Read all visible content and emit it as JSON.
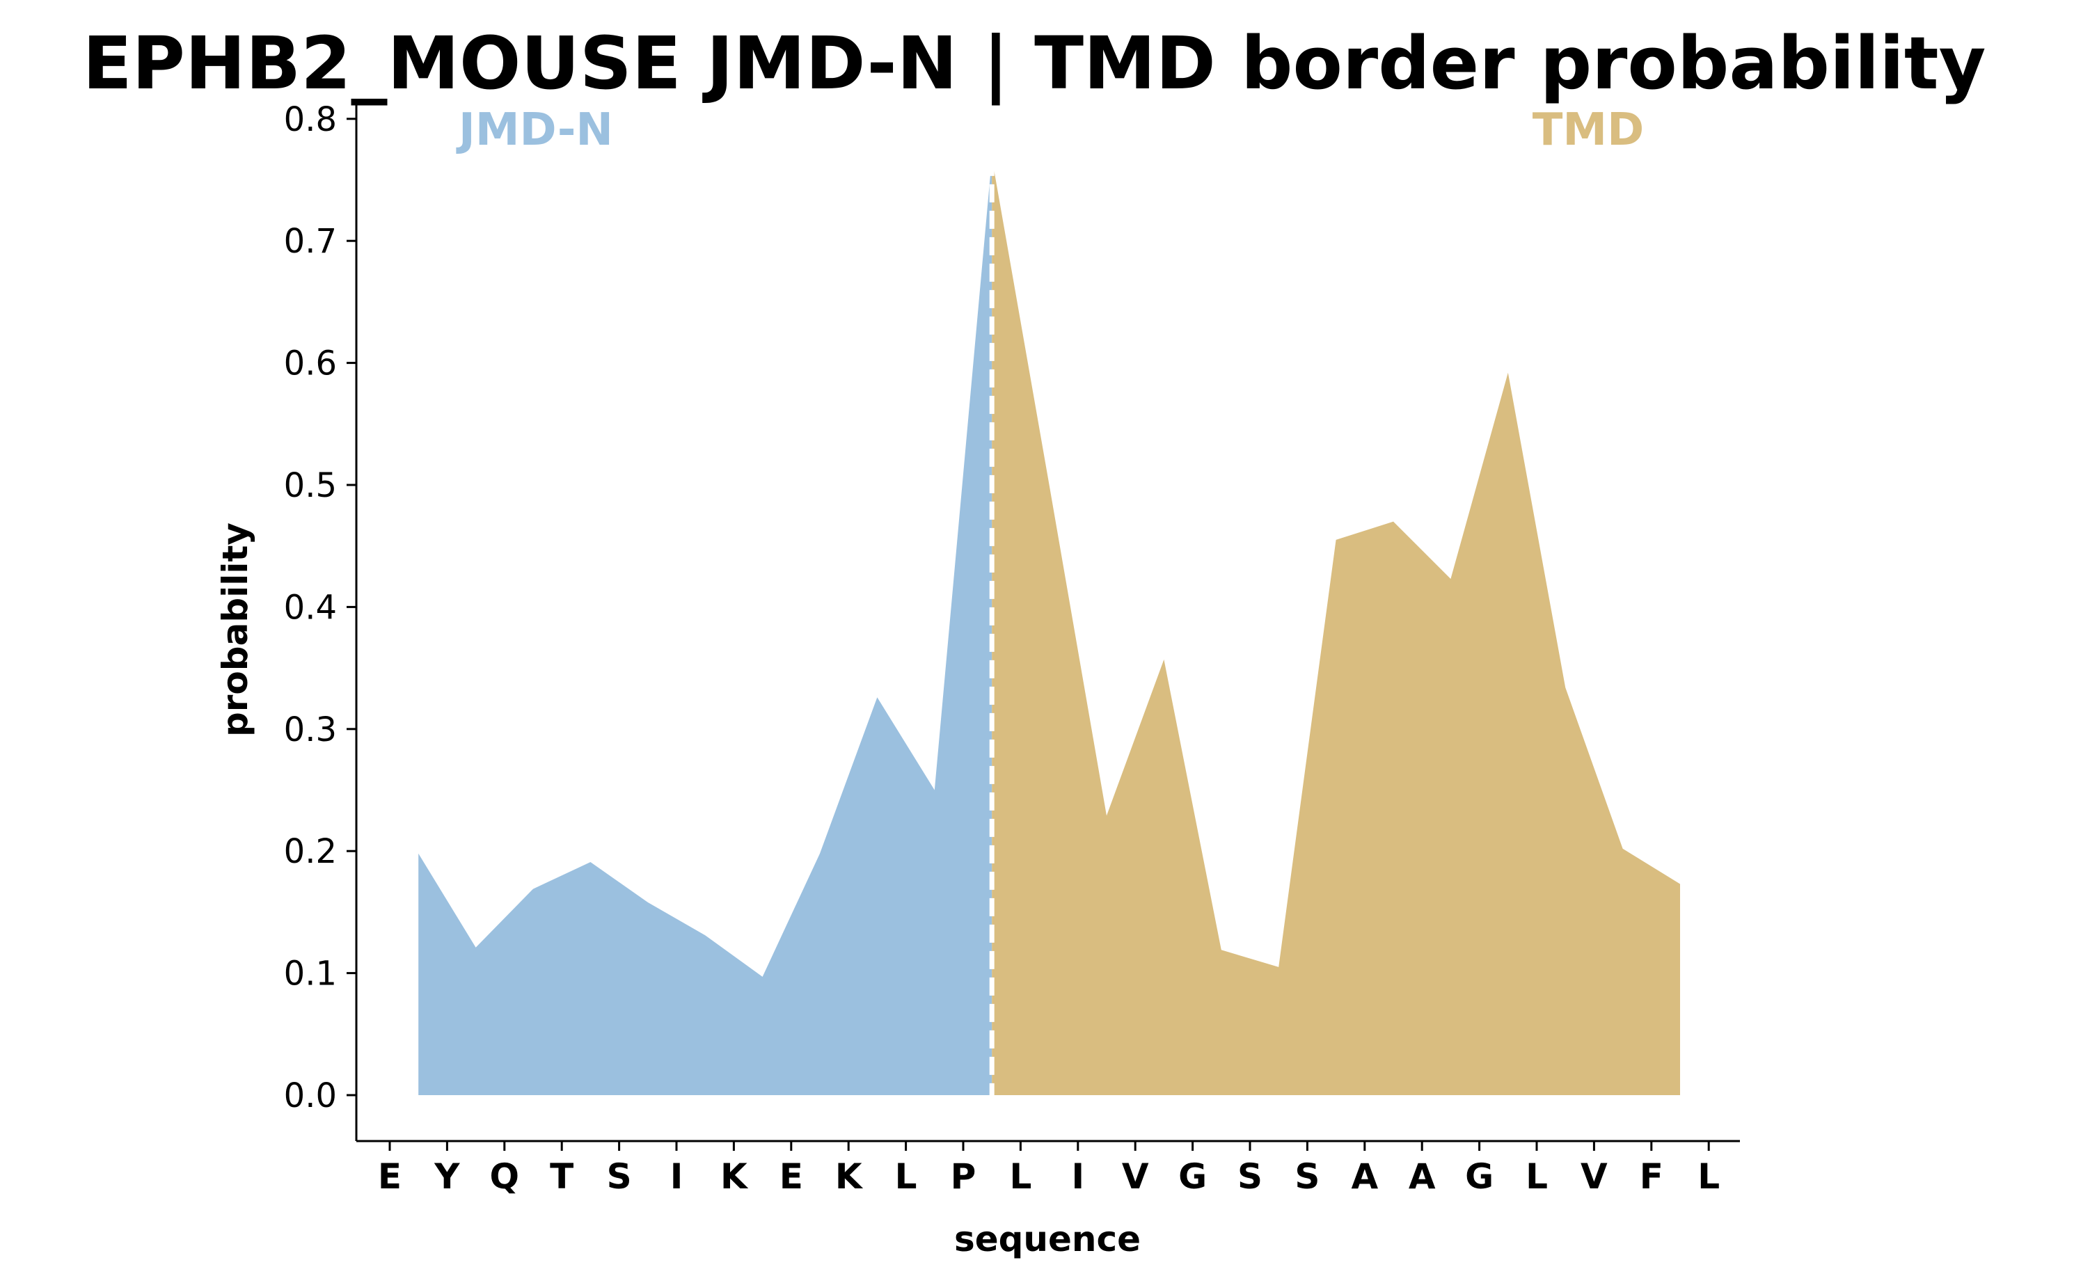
{
  "chart_data": {
    "type": "area",
    "title": "EPHB2_MOUSE JMD-N | TMD border probability",
    "xlabel": "sequence",
    "ylabel": "probability",
    "ylim": [
      -0.038,
      0.81
    ],
    "yticks": [
      "0.0",
      "0.1",
      "0.2",
      "0.3",
      "0.4",
      "0.5",
      "0.6",
      "0.7",
      "0.8"
    ],
    "categories": [
      "E",
      "Y",
      "Q",
      "T",
      "S",
      "I",
      "K",
      "E",
      "K",
      "L",
      "P",
      "L",
      "I",
      "V",
      "G",
      "S",
      "S",
      "A",
      "A",
      "G",
      "L",
      "V",
      "F",
      "L"
    ],
    "grid": false,
    "border_after_index": 10,
    "series": [
      {
        "name": "JMD-N",
        "color": "#9bc0df",
        "points": [
          {
            "x": 0.5,
            "y": 0.198
          },
          {
            "x": 1.5,
            "y": 0.121
          },
          {
            "x": 2.5,
            "y": 0.169
          },
          {
            "x": 3.5,
            "y": 0.191
          },
          {
            "x": 4.5,
            "y": 0.158
          },
          {
            "x": 5.5,
            "y": 0.131
          },
          {
            "x": 6.5,
            "y": 0.097
          },
          {
            "x": 7.5,
            "y": 0.198
          },
          {
            "x": 8.5,
            "y": 0.326
          },
          {
            "x": 9.5,
            "y": 0.25
          },
          {
            "x": 10.5,
            "y": 0.768
          }
        ]
      },
      {
        "name": "TMD",
        "color": "#d9bd80",
        "points": [
          {
            "x": 10.5,
            "y": 0.768
          },
          {
            "x": 11.5,
            "y": 0.5
          },
          {
            "x": 12.5,
            "y": 0.229
          },
          {
            "x": 13.5,
            "y": 0.357
          },
          {
            "x": 14.5,
            "y": 0.119
          },
          {
            "x": 15.5,
            "y": 0.105
          },
          {
            "x": 16.5,
            "y": 0.455
          },
          {
            "x": 17.5,
            "y": 0.47
          },
          {
            "x": 18.5,
            "y": 0.423
          },
          {
            "x": 19.5,
            "y": 0.592
          },
          {
            "x": 20.5,
            "y": 0.334
          },
          {
            "x": 21.5,
            "y": 0.202
          },
          {
            "x": 22.5,
            "y": 0.173
          }
        ]
      }
    ],
    "region_labels": [
      {
        "text": "JMD-N",
        "color": "#9bc0df"
      },
      {
        "text": "TMD",
        "color": "#d9bd80"
      }
    ],
    "border_line": {
      "x": 10.5,
      "color": "#ffffff",
      "style": "dashed"
    }
  }
}
